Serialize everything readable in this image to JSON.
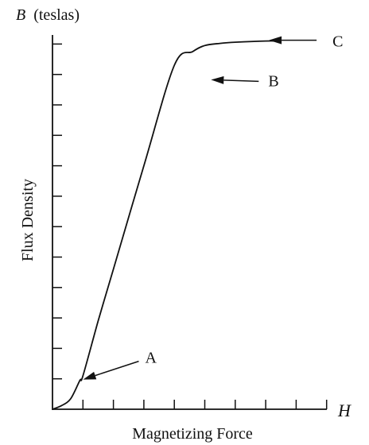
{
  "chart_data": {
    "type": "line",
    "title": "",
    "y_axis": {
      "symbol": "B",
      "unit": "(teslas)",
      "label": "Flux Density",
      "tick_count": 12
    },
    "x_axis": {
      "symbol": "H",
      "label": "Magnetizing Force",
      "tick_count": 9
    },
    "grid": false,
    "series": [
      {
        "x": [
          0,
          0.3,
          0.6,
          0.9,
          1.0,
          1.5,
          2.0,
          3.0,
          4.0,
          4.6,
          5.0,
          5.5,
          6.0,
          7.0,
          7.4
        ],
        "y": [
          0,
          0.12,
          0.35,
          0.95,
          1.1,
          2.9,
          4.6,
          8.0,
          11.3,
          11.75,
          11.95,
          12.02,
          12.06,
          12.1,
          12.1
        ]
      }
    ],
    "annotations": [
      {
        "label": "A",
        "x": 0.9,
        "y": 0.95
      },
      {
        "label": "B",
        "x": 5.1,
        "y": 10.8
      },
      {
        "label": "C",
        "x": 7.0,
        "y": 12.1
      }
    ]
  }
}
